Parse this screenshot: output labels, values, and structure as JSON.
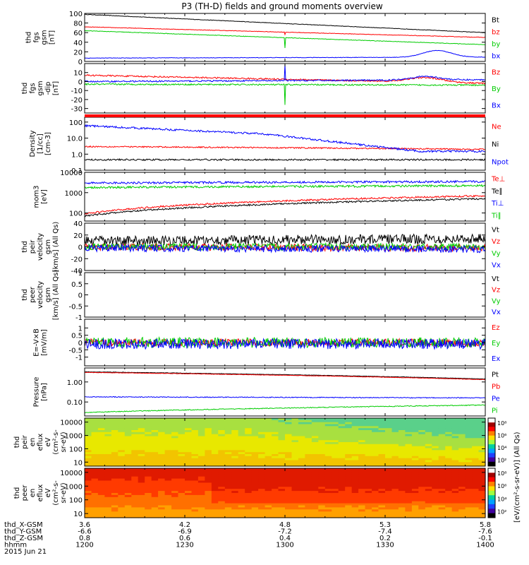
{
  "title": "P3 (TH-D) fields and ground moments overview",
  "colorbar_unit": "[eV/(cm²-s-sr-eV)] (All Qs)",
  "orbit": {
    "labels": [
      "thd_X-GSM",
      "thd_Y-GSM",
      "thd_Z-GSM",
      "hhmm",
      "2015 Jun 21"
    ],
    "times": [
      "1200",
      "1230",
      "1300",
      "1330",
      "1400"
    ],
    "x": [
      "3.6",
      "4.2",
      "4.8",
      "5.3",
      "5.8"
    ],
    "y": [
      "-6.6",
      "-6.9",
      "-7.2",
      "-7.4",
      "-7.6"
    ],
    "z": [
      "0.8",
      "0.6",
      "0.4",
      "0.2",
      "-0.1"
    ]
  },
  "chart_data": [
    {
      "type": "line",
      "ylabel": [
        "thd",
        "fgs",
        "gsm",
        "[nT]"
      ],
      "ylim": [
        0,
        100
      ],
      "scale": "linear",
      "ticks": [
        0,
        20,
        40,
        60,
        80,
        100
      ],
      "series": [
        {
          "name": "Bt",
          "color": "#000000",
          "start": 98,
          "end": 60,
          "noise": 0.5
        },
        {
          "name": "bz",
          "color": "#ff0000",
          "start": 72,
          "end": 50,
          "noise": 0.5,
          "spike": [
            0.5,
            56
          ]
        },
        {
          "name": "by",
          "color": "#00cc00",
          "start": 64,
          "end": 35,
          "noise": 0.5,
          "spike": [
            0.5,
            28
          ]
        },
        {
          "name": "bx",
          "color": "#0000ff",
          "start": 7,
          "end": 9,
          "noise": 0.5,
          "bump": [
            0.88,
            14,
            0.05
          ]
        }
      ]
    },
    {
      "type": "line",
      "ylabel": [
        "thd",
        "fgs",
        "gsm",
        "-dip",
        "[nT]"
      ],
      "ylim": [
        -35,
        20
      ],
      "scale": "linear",
      "ticks": [
        -30,
        -20,
        -10,
        0,
        10
      ],
      "series": [
        {
          "name": "Bz",
          "color": "#ff0000",
          "start": 7,
          "end": -2,
          "noise": 0.8,
          "bump": [
            0.85,
            5,
            0.06
          ]
        },
        {
          "name": "By",
          "color": "#00cc00",
          "start": -3,
          "end": -4,
          "noise": 0.8,
          "spike": [
            0.5,
            -26
          ]
        },
        {
          "name": "Bx",
          "color": "#0000ff",
          "start": 0,
          "end": 2,
          "noise": 0.8,
          "spike": [
            0.5,
            19
          ],
          "bump": [
            0.85,
            4,
            0.05
          ]
        }
      ]
    },
    {
      "type": "line",
      "ylabel": [
        "Density",
        "[1/cc]",
        "[cm-3]"
      ],
      "ylim": [
        0.1,
        200
      ],
      "scale": "log",
      "ticks": [
        0.1,
        1.0,
        10.0,
        100.0
      ],
      "series": [
        {
          "name": "Ne",
          "color": "#ff0000",
          "start": 3,
          "end": 2,
          "noise": 0.04
        },
        {
          "name": "Ni",
          "color": "#000000",
          "start": 0.45,
          "end": 0.45,
          "noise": 0.05
        },
        {
          "name": "Npot",
          "color": "#0000ff",
          "start": 60,
          "end": 1.5,
          "noise": 0.06,
          "drop": 0.45
        }
      ]
    },
    {
      "type": "line",
      "ylabel": [
        "mom3",
        "[eV]"
      ],
      "ylim": [
        40,
        10000
      ],
      "scale": "log",
      "ticks": [
        100,
        1000,
        10000
      ],
      "series": [
        {
          "name": "Te⊥",
          "color": "#ff0000",
          "start": 90,
          "end": 700,
          "noise": 0.04
        },
        {
          "name": "Te∥",
          "color": "#000000",
          "start": 70,
          "end": 500,
          "noise": 0.04
        },
        {
          "name": "Ti⊥",
          "color": "#0000ff",
          "start": 3000,
          "end": 3500,
          "noise": 0.05
        },
        {
          "name": "Ti∥",
          "color": "#00cc00",
          "start": 1800,
          "end": 2200,
          "noise": 0.05
        }
      ]
    },
    {
      "type": "line",
      "ylabel": [
        "thd",
        "peir",
        "velocity",
        "gsm",
        "[km/s] (All Qs)"
      ],
      "ylim": [
        -40,
        40
      ],
      "scale": "linear",
      "ticks": [
        -40,
        -20,
        0,
        20,
        40
      ],
      "series": [
        {
          "name": "Vt",
          "color": "#000000",
          "start": 10,
          "end": 14,
          "noise": 8
        },
        {
          "name": "Vz",
          "color": "#ff0000",
          "start": 0,
          "end": -2,
          "noise": 6
        },
        {
          "name": "Vy",
          "color": "#00cc00",
          "start": 0,
          "end": 0,
          "noise": 6
        },
        {
          "name": "Vx",
          "color": "#0000ff",
          "start": -2,
          "end": -4,
          "noise": 6
        }
      ]
    },
    {
      "type": "line",
      "ylabel": [
        "thd",
        "peer",
        "velocity",
        "gsm",
        "[km/s] (All Qs)"
      ],
      "ylim": [
        -1,
        1
      ],
      "scale": "linear",
      "ticks": [
        -1.0,
        -0.5,
        0.0,
        0.5,
        1.0
      ],
      "series": [
        {
          "name": "Vt",
          "color": "#000000"
        },
        {
          "name": "Vz",
          "color": "#ff0000"
        },
        {
          "name": "Vy",
          "color": "#00cc00"
        },
        {
          "name": "Vx",
          "color": "#0000ff"
        }
      ]
    },
    {
      "type": "line",
      "ylabel": [
        "E=-V×B",
        "[mV/m]"
      ],
      "ylim": [
        -1.6,
        1.6
      ],
      "scale": "linear",
      "ticks": [
        -1,
        -0.5,
        0,
        0.5,
        1
      ],
      "series": [
        {
          "name": "Ez",
          "color": "#ff0000",
          "start": 0,
          "end": 0,
          "noise": 0.25
        },
        {
          "name": "Ey",
          "color": "#00cc00",
          "start": 0,
          "end": 0,
          "noise": 0.35
        },
        {
          "name": "Ex",
          "color": "#0000ff",
          "start": -0.1,
          "end": -0.1,
          "noise": 0.35
        }
      ]
    },
    {
      "type": "line",
      "ylabel": [
        "Pressure",
        "[nPa]"
      ],
      "ylim": [
        0.02,
        5
      ],
      "scale": "log",
      "ticks": [
        0.1,
        1.0
      ],
      "series": [
        {
          "name": "Pt",
          "color": "#000000",
          "start": 3.2,
          "end": 1.4,
          "noise": 0.01
        },
        {
          "name": "Pb",
          "color": "#ff0000",
          "start": 3,
          "end": 1.3,
          "noise": 0.01
        },
        {
          "name": "Pe",
          "color": "#0000ff",
          "start": 0.18,
          "end": 0.16,
          "noise": 0.02
        },
        {
          "name": "Pi",
          "color": "#00cc00",
          "start": 0.03,
          "end": 0.07,
          "noise": 0.02
        }
      ]
    },
    {
      "type": "heatmap",
      "ylabel": [
        "thd",
        "peir",
        "en",
        "eflux",
        "eV",
        "(cm²-s-",
        "sr-eV)"
      ],
      "ylim": [
        5,
        20000
      ],
      "scale": "log",
      "ticks": [
        10,
        100,
        1000,
        10000
      ],
      "colorbar_ticks": [
        "10⁸",
        "10⁶",
        "10⁴",
        "10²"
      ]
    },
    {
      "type": "heatmap",
      "ylabel": [
        "thd",
        "peer",
        "en",
        "eflux",
        "eV",
        "(cm²-s-",
        "sr-eV)"
      ],
      "ylim": [
        5,
        20000
      ],
      "scale": "log",
      "ticks": [
        10,
        100,
        1000,
        10000
      ],
      "colorbar_ticks": [
        "10⁸",
        "10⁶",
        "10⁴",
        "10²"
      ]
    }
  ]
}
